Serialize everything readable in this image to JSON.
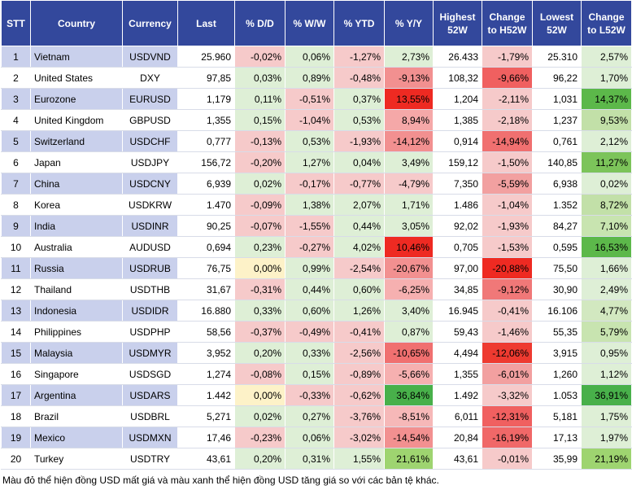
{
  "table": {
    "headers": [
      "STT",
      "Country",
      "Currency",
      "Last",
      "% D/D",
      "% W/W",
      "% YTD",
      "% Y/Y",
      "Highest 52W",
      "Change to H52W",
      "Lowest 52W",
      "Change to L52W"
    ],
    "rows": [
      [
        "1",
        "Vietnam",
        "USDVND",
        "25.960",
        "-0,02%",
        "0,06%",
        "-1,27%",
        "2,73%",
        "26.433",
        "-1,79%",
        "25.310",
        "2,57%"
      ],
      [
        "2",
        "United States",
        "DXY",
        "97,85",
        "0,03%",
        "0,89%",
        "-0,48%",
        "-9,13%",
        "108,32",
        "-9,66%",
        "96,22",
        "1,70%"
      ],
      [
        "3",
        "Eurozone",
        "EURUSD",
        "1,179",
        "0,11%",
        "-0,51%",
        "0,37%",
        "13,55%",
        "1,204",
        "-2,11%",
        "1,031",
        "14,37%"
      ],
      [
        "4",
        "United Kingdom",
        "GBPUSD",
        "1,355",
        "0,15%",
        "-1,04%",
        "0,53%",
        "8,94%",
        "1,385",
        "-2,18%",
        "1,237",
        "9,53%"
      ],
      [
        "5",
        "Switzerland",
        "USDCHF",
        "0,777",
        "-0,13%",
        "0,53%",
        "-1,93%",
        "-14,12%",
        "0,914",
        "-14,94%",
        "0,761",
        "2,12%"
      ],
      [
        "6",
        "Japan",
        "USDJPY",
        "156,72",
        "-0,20%",
        "1,27%",
        "0,04%",
        "3,49%",
        "159,12",
        "-1,50%",
        "140,85",
        "11,27%"
      ],
      [
        "7",
        "China",
        "USDCNY",
        "6,939",
        "0,02%",
        "-0,17%",
        "-0,77%",
        "-4,79%",
        "7,350",
        "-5,59%",
        "6,938",
        "0,02%"
      ],
      [
        "8",
        "Korea",
        "USDKRW",
        "1.470",
        "-0,09%",
        "1,38%",
        "2,07%",
        "1,71%",
        "1.486",
        "-1,04%",
        "1.352",
        "8,72%"
      ],
      [
        "9",
        "India",
        "USDINR",
        "90,25",
        "-0,07%",
        "-1,55%",
        "0,44%",
        "3,05%",
        "92,02",
        "-1,93%",
        "84,27",
        "7,10%"
      ],
      [
        "10",
        "Australia",
        "AUDUSD",
        "0,694",
        "0,23%",
        "-0,27%",
        "4,02%",
        "10,46%",
        "0,705",
        "-1,53%",
        "0,595",
        "16,53%"
      ],
      [
        "11",
        "Russia",
        "USDRUB",
        "76,75",
        "0,00%",
        "0,99%",
        "-2,54%",
        "-20,67%",
        "97,00",
        "-20,88%",
        "75,50",
        "1,66%"
      ],
      [
        "12",
        "Thailand",
        "USDTHB",
        "31,67",
        "-0,31%",
        "0,44%",
        "0,60%",
        "-6,25%",
        "34,85",
        "-9,12%",
        "30,90",
        "2,49%"
      ],
      [
        "13",
        "Indonesia",
        "USDIDR",
        "16.880",
        "0,33%",
        "0,60%",
        "1,26%",
        "3,40%",
        "16.945",
        "-0,41%",
        "16.106",
        "4,77%"
      ],
      [
        "14",
        "Philippines",
        "USDPHP",
        "58,56",
        "-0,37%",
        "-0,49%",
        "-0,41%",
        "0,87%",
        "59,43",
        "-1,46%",
        "55,35",
        "5,79%"
      ],
      [
        "15",
        "Malaysia",
        "USDMYR",
        "3,952",
        "0,20%",
        "0,33%",
        "-2,56%",
        "-10,65%",
        "4,494",
        "-12,06%",
        "3,915",
        "0,95%"
      ],
      [
        "16",
        "Singapore",
        "USDSGD",
        "1,274",
        "-0,08%",
        "0,15%",
        "-0,89%",
        "-5,66%",
        "1,355",
        "-6,01%",
        "1,260",
        "1,12%"
      ],
      [
        "17",
        "Argentina",
        "USDARS",
        "1.442",
        "0,00%",
        "-0,33%",
        "-0,62%",
        "36,84%",
        "1.492",
        "-3,32%",
        "1.053",
        "36,91%"
      ],
      [
        "18",
        "Brazil",
        "USDBRL",
        "5,271",
        "0,02%",
        "0,27%",
        "-3,76%",
        "-8,51%",
        "6,011",
        "-12,31%",
        "5,181",
        "1,75%"
      ],
      [
        "19",
        "Mexico",
        "USDMXN",
        "17,46",
        "-0,23%",
        "0,06%",
        "-3,02%",
        "-14,54%",
        "20,84",
        "-16,19%",
        "17,13",
        "1,97%"
      ],
      [
        "20",
        "Turkey",
        "USDTRY",
        "43,61",
        "0,20%",
        "0,31%",
        "1,55%",
        "21,61%",
        "43,61",
        "-0,01%",
        "35,99",
        "21,19%"
      ]
    ],
    "cell_colors": [
      [
        "#f6caca",
        "#deefd6",
        "#f6caca",
        "#deefd6",
        "#f6caca",
        "#deefd6"
      ],
      [
        "#deefd6",
        "#deefd6",
        "#f6caca",
        "#f29090",
        "#f06060",
        "#deefd6"
      ],
      [
        "#deefd6",
        "#f6caca",
        "#deefd6",
        "#ee2a22",
        "#f6caca",
        "#5cb84a"
      ],
      [
        "#deefd6",
        "#f6caca",
        "#deefd6",
        "#f5a8a8",
        "#f6caca",
        "#c2e0a8"
      ],
      [
        "#f6caca",
        "#deefd6",
        "#f6caca",
        "#f29090",
        "#f07070",
        "#deefd6"
      ],
      [
        "#f6caca",
        "#deefd6",
        "#deefd6",
        "#deefd6",
        "#f6caca",
        "#7cc45a"
      ],
      [
        "#deefd6",
        "#f6caca",
        "#f6caca",
        "#f6caca",
        "#f2a0a0",
        "#deefd6"
      ],
      [
        "#f6caca",
        "#deefd6",
        "#deefd6",
        "#deefd6",
        "#f6caca",
        "#c2e0a8"
      ],
      [
        "#f6caca",
        "#f6caca",
        "#deefd6",
        "#deefd6",
        "#f6caca",
        "#c8e4b0"
      ],
      [
        "#deefd6",
        "#f6caca",
        "#deefd6",
        "#ee2a22",
        "#f6caca",
        "#5cb84a"
      ],
      [
        "#fdf2c8",
        "#deefd6",
        "#f6caca",
        "#f29090",
        "#ee2a22",
        "#deefd6"
      ],
      [
        "#f6caca",
        "#deefd6",
        "#deefd6",
        "#f6b0b0",
        "#f07878",
        "#deefd6"
      ],
      [
        "#deefd6",
        "#deefd6",
        "#deefd6",
        "#deefd6",
        "#f6caca",
        "#d2e8c0"
      ],
      [
        "#f6caca",
        "#f6caca",
        "#f6caca",
        "#deefd6",
        "#f6caca",
        "#c8e4b0"
      ],
      [
        "#deefd6",
        "#deefd6",
        "#f6caca",
        "#f07070",
        "#ee3a30",
        "#deefd6"
      ],
      [
        "#f6caca",
        "#deefd6",
        "#f6caca",
        "#f6b0b0",
        "#f2a0a0",
        "#deefd6"
      ],
      [
        "#fdf2c8",
        "#f6caca",
        "#f6caca",
        "#48b04a",
        "#f6caca",
        "#48b04a"
      ],
      [
        "#deefd6",
        "#deefd6",
        "#f6caca",
        "#f6b8b8",
        "#f06060",
        "#deefd6"
      ],
      [
        "#f6caca",
        "#deefd6",
        "#f6caca",
        "#f29090",
        "#f06868",
        "#deefd6"
      ],
      [
        "#deefd6",
        "#deefd6",
        "#deefd6",
        "#9ed470",
        "#f6caca",
        "#9ed470"
      ]
    ]
  },
  "note": "Màu đỏ thể hiện đồng USD mất giá và màu xanh thể hiện đồng USD tăng giá so với các bản tệ khác."
}
